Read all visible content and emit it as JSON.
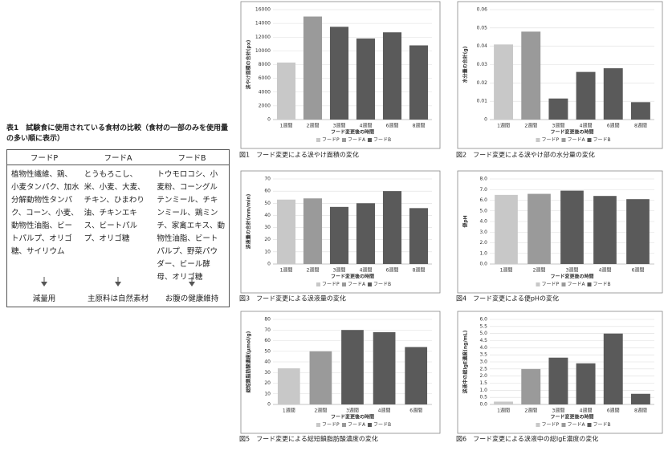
{
  "table": {
    "title": "表1　試験食に使用されている食材の比較（食材の一部のみを使用量の多い順に表示）",
    "headers": [
      "フードP",
      "フードA",
      "フードB"
    ],
    "cells": [
      "植物性繊維、鶏、小麦タンパク、加水分解動物性タンパク、コーン、小麦、動物性油脂、ビートパルプ、オリゴ糖、サイリウム",
      "とうもろこし、米、小麦、大麦、チキン、ひまわり油、チキンエキス、ビートパルプ、オリゴ糖",
      "トウモロコシ、小麦粉、コーングルテンミール、チキンミール、鶏ミンチ、家禽エキス、動物性油脂、ビートパルプ、野菜パウダー、ビール酵母、オリゴ糖"
    ],
    "notes": [
      "減量用",
      "主原料は自然素材",
      "お腹の健康維持"
    ]
  },
  "chart_data": [
    {
      "type": "bar",
      "caption": "図1　フード変更による涙やけ面積の変化",
      "ylabel": "涙やけ面積の合計(px)",
      "xlabel": "フード変更後の時間",
      "grid": true,
      "categories": [
        "1週間",
        "2週間",
        "3週間",
        "4週間",
        "6週間",
        "8週間"
      ],
      "ylim": [
        0,
        16000
      ],
      "yticks": [
        0,
        2000,
        4000,
        6000,
        8000,
        10000,
        12000,
        14000,
        16000
      ],
      "series": [
        {
          "name": "フードP",
          "color": "#c8c8c8",
          "values": [
            8300,
            null,
            null,
            null,
            null,
            null
          ]
        },
        {
          "name": "フードA",
          "color": "#9a9a9a",
          "values": [
            null,
            15000,
            null,
            null,
            null,
            null
          ]
        },
        {
          "name": "フードB",
          "color": "#5a5a5a",
          "values": [
            null,
            null,
            13500,
            11800,
            12700,
            10800
          ]
        }
      ]
    },
    {
      "type": "bar",
      "caption": "図2　フード変更による涙やけ部の水分量の変化",
      "ylabel": "水分量の合計(g)",
      "xlabel": "フード変更後の時間",
      "grid": true,
      "categories": [
        "1週間",
        "2週間",
        "3週間",
        "4週間",
        "6週間",
        "8週間"
      ],
      "ylim": [
        0,
        0.06
      ],
      "yticks": [
        0,
        0.01,
        0.02,
        0.03,
        0.04,
        0.05,
        0.06
      ],
      "series": [
        {
          "name": "フードP",
          "color": "#c8c8c8",
          "values": [
            0.041,
            null,
            null,
            null,
            null,
            null
          ]
        },
        {
          "name": "フードA",
          "color": "#9a9a9a",
          "values": [
            null,
            0.048,
            null,
            null,
            null,
            null
          ]
        },
        {
          "name": "フードB",
          "color": "#5a5a5a",
          "values": [
            null,
            null,
            0.0115,
            0.026,
            0.028,
            0.0095
          ]
        }
      ]
    },
    {
      "type": "bar",
      "caption": "図3　フード変更による涙液量の変化",
      "ylabel": "涙液量の合計(mm/min)",
      "xlabel": "フード変更後の時間",
      "grid": true,
      "categories": [
        "1週間",
        "2週間",
        "3週間",
        "4週間",
        "6週間",
        "8週間"
      ],
      "ylim": [
        0,
        70
      ],
      "yticks": [
        0,
        10,
        20,
        30,
        40,
        50,
        60,
        70
      ],
      "series": [
        {
          "name": "フードP",
          "color": "#c8c8c8",
          "values": [
            53,
            null,
            null,
            null,
            null,
            null
          ]
        },
        {
          "name": "フードA",
          "color": "#9a9a9a",
          "values": [
            null,
            54,
            null,
            null,
            null,
            null
          ]
        },
        {
          "name": "フードB",
          "color": "#5a5a5a",
          "values": [
            null,
            null,
            47,
            50,
            60,
            46
          ]
        }
      ]
    },
    {
      "type": "bar",
      "caption": "図4　フード変更による便pHの変化",
      "ylabel": "便pH",
      "xlabel": "フード変更後の時間",
      "grid": true,
      "categories": [
        "1週間",
        "2週間",
        "3週間",
        "4週間",
        "6週間"
      ],
      "ylim": [
        0,
        8
      ],
      "yticks": [
        {
          "value": 0,
          "label": "0.0"
        },
        {
          "value": 1,
          "label": "1.0"
        },
        {
          "value": 2,
          "label": "2.0"
        },
        {
          "value": 3,
          "label": "3.0"
        },
        {
          "value": 4,
          "label": "4.0"
        },
        {
          "value": 5,
          "label": "5.0"
        },
        {
          "value": 6,
          "label": "6.0"
        },
        {
          "value": 7,
          "label": "7.0"
        },
        {
          "value": 8,
          "label": "8.0"
        }
      ],
      "series": [
        {
          "name": "フードP",
          "color": "#c8c8c8",
          "values": [
            6.5,
            null,
            null,
            null,
            null
          ]
        },
        {
          "name": "フードA",
          "color": "#9a9a9a",
          "values": [
            null,
            6.6,
            null,
            null,
            null
          ]
        },
        {
          "name": "フードB",
          "color": "#5a5a5a",
          "values": [
            null,
            null,
            6.9,
            6.4,
            6.1
          ]
        }
      ]
    },
    {
      "type": "bar",
      "caption": "図5　フード変更による総短鎖脂肪酸濃度の変化",
      "ylabel": "総短鎖脂肪酸濃度(μmol/g)",
      "xlabel": "フード変更後の時間",
      "grid": true,
      "categories": [
        "1週間",
        "2週間",
        "3週間",
        "4週間",
        "6週間"
      ],
      "ylim": [
        0,
        80
      ],
      "yticks": [
        0,
        10,
        20,
        30,
        40,
        50,
        60,
        70,
        80
      ],
      "series": [
        {
          "name": "フードP",
          "color": "#c8c8c8",
          "values": [
            34,
            null,
            null,
            null,
            null
          ]
        },
        {
          "name": "フードA",
          "color": "#9a9a9a",
          "values": [
            null,
            50,
            null,
            null,
            null
          ]
        },
        {
          "name": "フードB",
          "color": "#5a5a5a",
          "values": [
            null,
            null,
            70,
            68,
            54
          ]
        }
      ]
    },
    {
      "type": "bar",
      "caption": "図6　フード変更による涙液中の総IgE濃度の変化",
      "ylabel": "涙液中の総IgE濃度(ng/mL)",
      "xlabel": "フード変更後の時間",
      "grid": true,
      "categories": [
        "1週間",
        "2週間",
        "3週間",
        "4週間",
        "6週間",
        "8週間"
      ],
      "ylim": [
        0,
        6
      ],
      "yticks": [
        {
          "value": 0,
          "label": "0.0"
        },
        0.5,
        {
          "value": 1,
          "label": "1.0"
        },
        1.5,
        {
          "value": 2,
          "label": "2.0"
        },
        2.5,
        {
          "value": 3,
          "label": "3.0"
        },
        3.5,
        {
          "value": 4,
          "label": "4.0"
        },
        4.5,
        {
          "value": 5,
          "label": "5.0"
        },
        5.5,
        {
          "value": 6,
          "label": "6.0"
        }
      ],
      "series": [
        {
          "name": "フードP",
          "color": "#c8c8c8",
          "values": [
            0.2,
            null,
            null,
            null,
            null,
            null
          ]
        },
        {
          "name": "フードA",
          "color": "#9a9a9a",
          "values": [
            null,
            2.5,
            null,
            null,
            null,
            null
          ]
        },
        {
          "name": "フードB",
          "color": "#5a5a5a",
          "values": [
            null,
            null,
            3.3,
            2.9,
            5.0,
            0.75
          ]
        }
      ]
    }
  ]
}
